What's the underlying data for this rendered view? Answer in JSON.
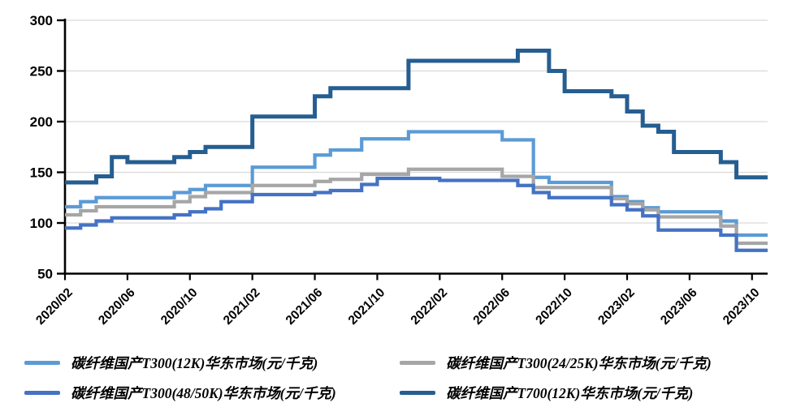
{
  "chart_data": {
    "type": "line",
    "line_style": "step-after",
    "title": "",
    "xlabel": "",
    "ylabel": "",
    "unit": "元/千克",
    "ylim": [
      50,
      300
    ],
    "grid": true,
    "grid_color": "#D9D9D9",
    "axis_color": "#000000",
    "legend_position": "bottom",
    "y_ticks": [
      300,
      250,
      200,
      150,
      100,
      50
    ],
    "x_tick_labels": [
      "2020/02",
      "2020/06",
      "2020/10",
      "2021/02",
      "2021/06",
      "2021/10",
      "2022/02",
      "2022/06",
      "2022/10",
      "2023/02",
      "2023/06",
      "2023/10"
    ],
    "x": [
      "2020/02",
      "2020/03",
      "2020/04",
      "2020/05",
      "2020/06",
      "2020/07",
      "2020/08",
      "2020/09",
      "2020/10",
      "2020/11",
      "2020/12",
      "2021/01",
      "2021/02",
      "2021/03",
      "2021/04",
      "2021/05",
      "2021/06",
      "2021/07",
      "2021/08",
      "2021/09",
      "2021/10",
      "2021/11",
      "2021/12",
      "2022/01",
      "2022/02",
      "2022/03",
      "2022/04",
      "2022/05",
      "2022/06",
      "2022/07",
      "2022/08",
      "2022/09",
      "2022/10",
      "2022/11",
      "2022/12",
      "2023/01",
      "2023/02",
      "2023/03",
      "2023/04",
      "2023/05",
      "2023/06",
      "2023/07",
      "2023/08",
      "2023/09",
      "2023/10"
    ],
    "series": [
      {
        "label": "碳纤维国产T300(12K)华东市场(元/千克)",
        "color": "#5B9BD5",
        "values": [
          116,
          121,
          125,
          125,
          125,
          125,
          125,
          130,
          133,
          137,
          137,
          137,
          155,
          155,
          155,
          155,
          167,
          172,
          172,
          183,
          183,
          183,
          190,
          190,
          190,
          190,
          190,
          190,
          182,
          182,
          145,
          140,
          140,
          140,
          140,
          126,
          121,
          115,
          111,
          111,
          111,
          111,
          102,
          88,
          88
        ]
      },
      {
        "label": "碳纤维国产T300(24/25K)华东市场(元/千克)",
        "color": "#A6A6A6",
        "values": [
          108,
          112,
          116,
          116,
          116,
          116,
          116,
          121,
          126,
          130,
          130,
          130,
          137,
          137,
          137,
          137,
          141,
          143,
          143,
          148,
          148,
          148,
          153,
          153,
          153,
          153,
          153,
          153,
          146,
          146,
          135,
          135,
          135,
          135,
          135,
          124,
          119,
          113,
          106,
          106,
          106,
          106,
          97,
          80,
          80
        ]
      },
      {
        "label": "碳纤维国产T300(48/50K)华东市场(元/千克)",
        "color": "#4472C4",
        "values": [
          95,
          98,
          102,
          105,
          105,
          105,
          105,
          108,
          111,
          114,
          121,
          121,
          128,
          128,
          128,
          128,
          130,
          132,
          132,
          138,
          144,
          144,
          144,
          144,
          142,
          142,
          142,
          142,
          142,
          137,
          130,
          125,
          125,
          125,
          125,
          118,
          113,
          107,
          93,
          93,
          93,
          93,
          88,
          73,
          73
        ]
      },
      {
        "label": "碳纤维国产T700(12K)华东市场(元/千克)",
        "color": "#255E91",
        "values": [
          140,
          140,
          146,
          165,
          160,
          160,
          160,
          165,
          170,
          175,
          175,
          175,
          205,
          205,
          205,
          205,
          225,
          233,
          233,
          233,
          233,
          233,
          260,
          260,
          260,
          260,
          260,
          260,
          260,
          270,
          270,
          250,
          230,
          230,
          230,
          225,
          210,
          196,
          190,
          170,
          170,
          170,
          160,
          145,
          145
        ]
      }
    ]
  }
}
